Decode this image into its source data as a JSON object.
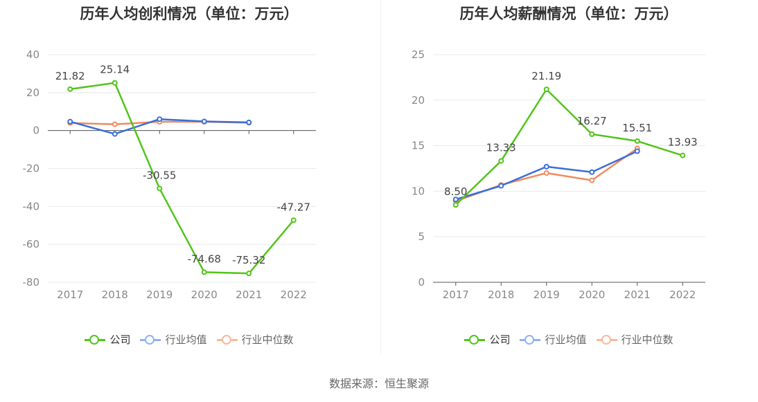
{
  "colors": {
    "company": "#52c41a",
    "industry_avg": "#3a6fd8",
    "industry_median": "#f08a5d",
    "legend_avg": "#8fb2f0",
    "legend_median": "#f7b99a"
  },
  "legend": {
    "company": "公司",
    "industry_avg": "行业均值",
    "industry_median": "行业中位数"
  },
  "source": "数据来源：恒生聚源",
  "chart_data": [
    {
      "type": "line",
      "title": "历年人均创利情况（单位：万元）",
      "categories": [
        "2017",
        "2018",
        "2019",
        "2020",
        "2021",
        "2022"
      ],
      "ylim": [
        -80,
        40
      ],
      "yticks": [
        40,
        20,
        0,
        -20,
        -40,
        -60,
        -80
      ],
      "ytick_labels": [
        "40",
        "20",
        "0",
        "-20",
        "-40",
        "-60",
        "-80"
      ],
      "grid": true,
      "legend_position": "bottom",
      "series": [
        {
          "name": "公司",
          "values": [
            21.82,
            25.14,
            -30.55,
            -74.68,
            -75.32,
            -47.27
          ],
          "labels": [
            "21.82",
            "25.14",
            "-30.55",
            "-74.68",
            "-75.32",
            "-47.27"
          ]
        },
        {
          "name": "行业均值",
          "values": [
            4.7,
            -1.8,
            6.0,
            4.8,
            4.3,
            null
          ]
        },
        {
          "name": "行业中位数",
          "values": [
            4.0,
            3.3,
            4.6,
            4.6,
            4.1,
            null
          ]
        }
      ]
    },
    {
      "type": "line",
      "title": "历年人均薪酬情况（单位：万元）",
      "categories": [
        "2017",
        "2018",
        "2019",
        "2020",
        "2021",
        "2022"
      ],
      "ylim": [
        0,
        25
      ],
      "yticks": [
        25,
        20,
        15,
        10,
        5,
        0
      ],
      "ytick_labels": [
        "25",
        "20",
        "15",
        "10",
        "5",
        "0"
      ],
      "grid": true,
      "legend_position": "bottom",
      "series": [
        {
          "name": "公司",
          "values": [
            8.5,
            13.33,
            21.19,
            16.27,
            15.51,
            13.93
          ],
          "labels": [
            "8.50",
            "13.33",
            "21.19",
            "16.27",
            "15.51",
            "13.93"
          ]
        },
        {
          "name": "行业均值",
          "values": [
            9.1,
            10.6,
            12.7,
            12.1,
            14.4,
            null
          ]
        },
        {
          "name": "行业中位数",
          "values": [
            8.9,
            10.7,
            12.0,
            11.2,
            14.7,
            null
          ]
        }
      ]
    }
  ]
}
